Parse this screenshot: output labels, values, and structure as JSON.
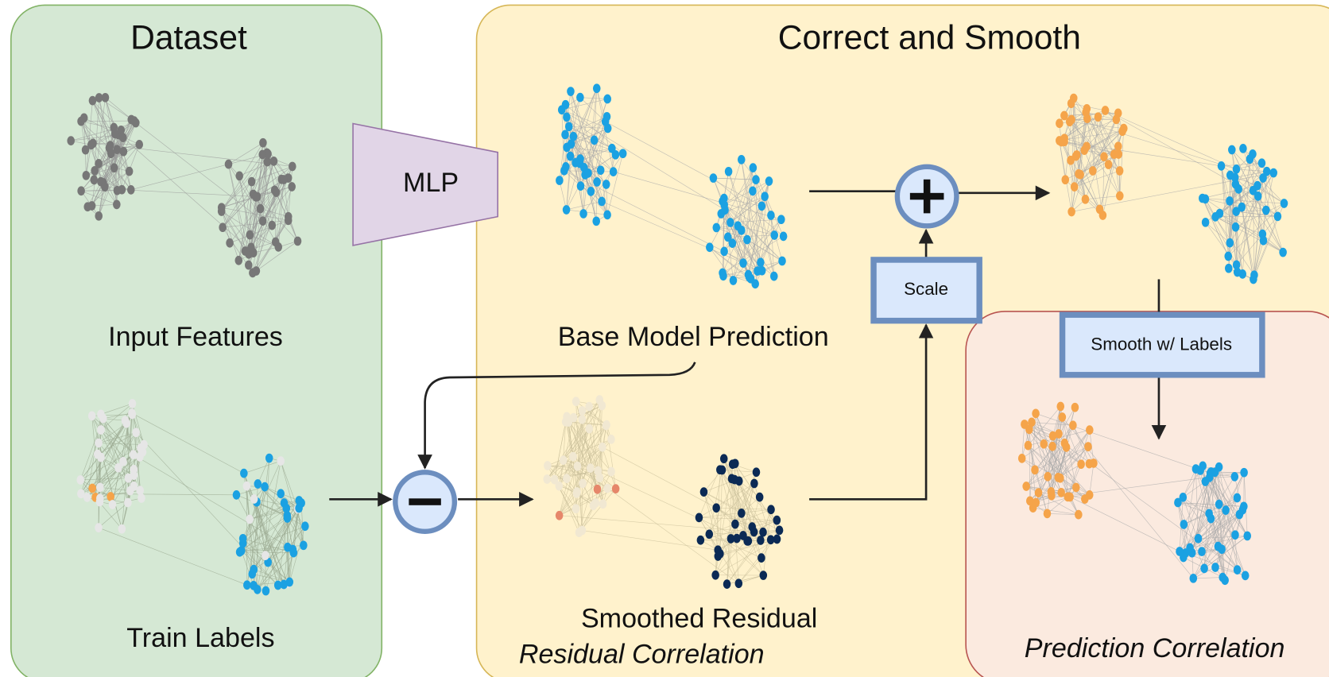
{
  "dataset": {
    "title": "Dataset",
    "input_features": "Input Features",
    "train_labels": "Train Labels"
  },
  "mlp": {
    "label": "MLP"
  },
  "correct_and_smooth": {
    "title": "Correct and Smooth",
    "base_prediction": "Base Model Prediction",
    "smoothed_residual": "Smoothed Residual",
    "residual_correlation": "Residual Correlation",
    "scale": "Scale",
    "smooth_with_labels": "Smooth w/ Labels",
    "prediction_correlation": "Prediction Correlation"
  }
}
